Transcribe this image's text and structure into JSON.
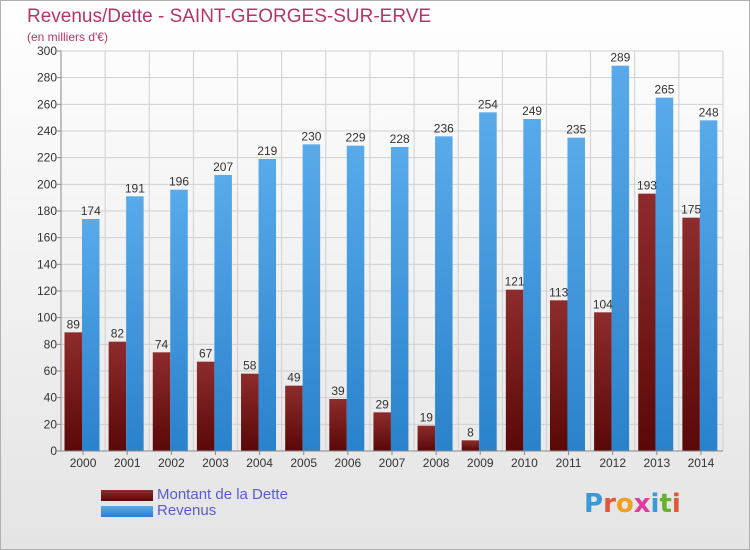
{
  "title": "Revenus/Dette - SAINT-GEORGES-SUR-ERVE",
  "subtitle": "(en milliers d'€)",
  "logo": "Proxiti",
  "colors": {
    "dette_top": "#8e2c2c",
    "dette_bottom": "#5a0808",
    "revenus_top": "#58aaea",
    "revenus_bottom": "#2a82cc",
    "title": "#b5346a",
    "legend_text": "#5a5ad8"
  },
  "chart_data": {
    "type": "bar",
    "categories": [
      "2000",
      "2001",
      "2002",
      "2003",
      "2004",
      "2005",
      "2006",
      "2007",
      "2008",
      "2009",
      "2010",
      "2011",
      "2012",
      "2013",
      "2014"
    ],
    "series": [
      {
        "name": "Montant de la Dette",
        "values": [
          89,
          82,
          74,
          67,
          58,
          49,
          39,
          29,
          19,
          8,
          121,
          113,
          104,
          193,
          175
        ]
      },
      {
        "name": "Revenus",
        "values": [
          174,
          191,
          196,
          207,
          219,
          230,
          229,
          228,
          236,
          254,
          249,
          235,
          289,
          265,
          248
        ]
      }
    ],
    "ylim": [
      0,
      300
    ],
    "yticks": [
      0,
      20,
      40,
      60,
      80,
      100,
      120,
      140,
      160,
      180,
      200,
      220,
      240,
      260,
      280,
      300
    ],
    "grid": true,
    "legend": "bottom-left"
  }
}
